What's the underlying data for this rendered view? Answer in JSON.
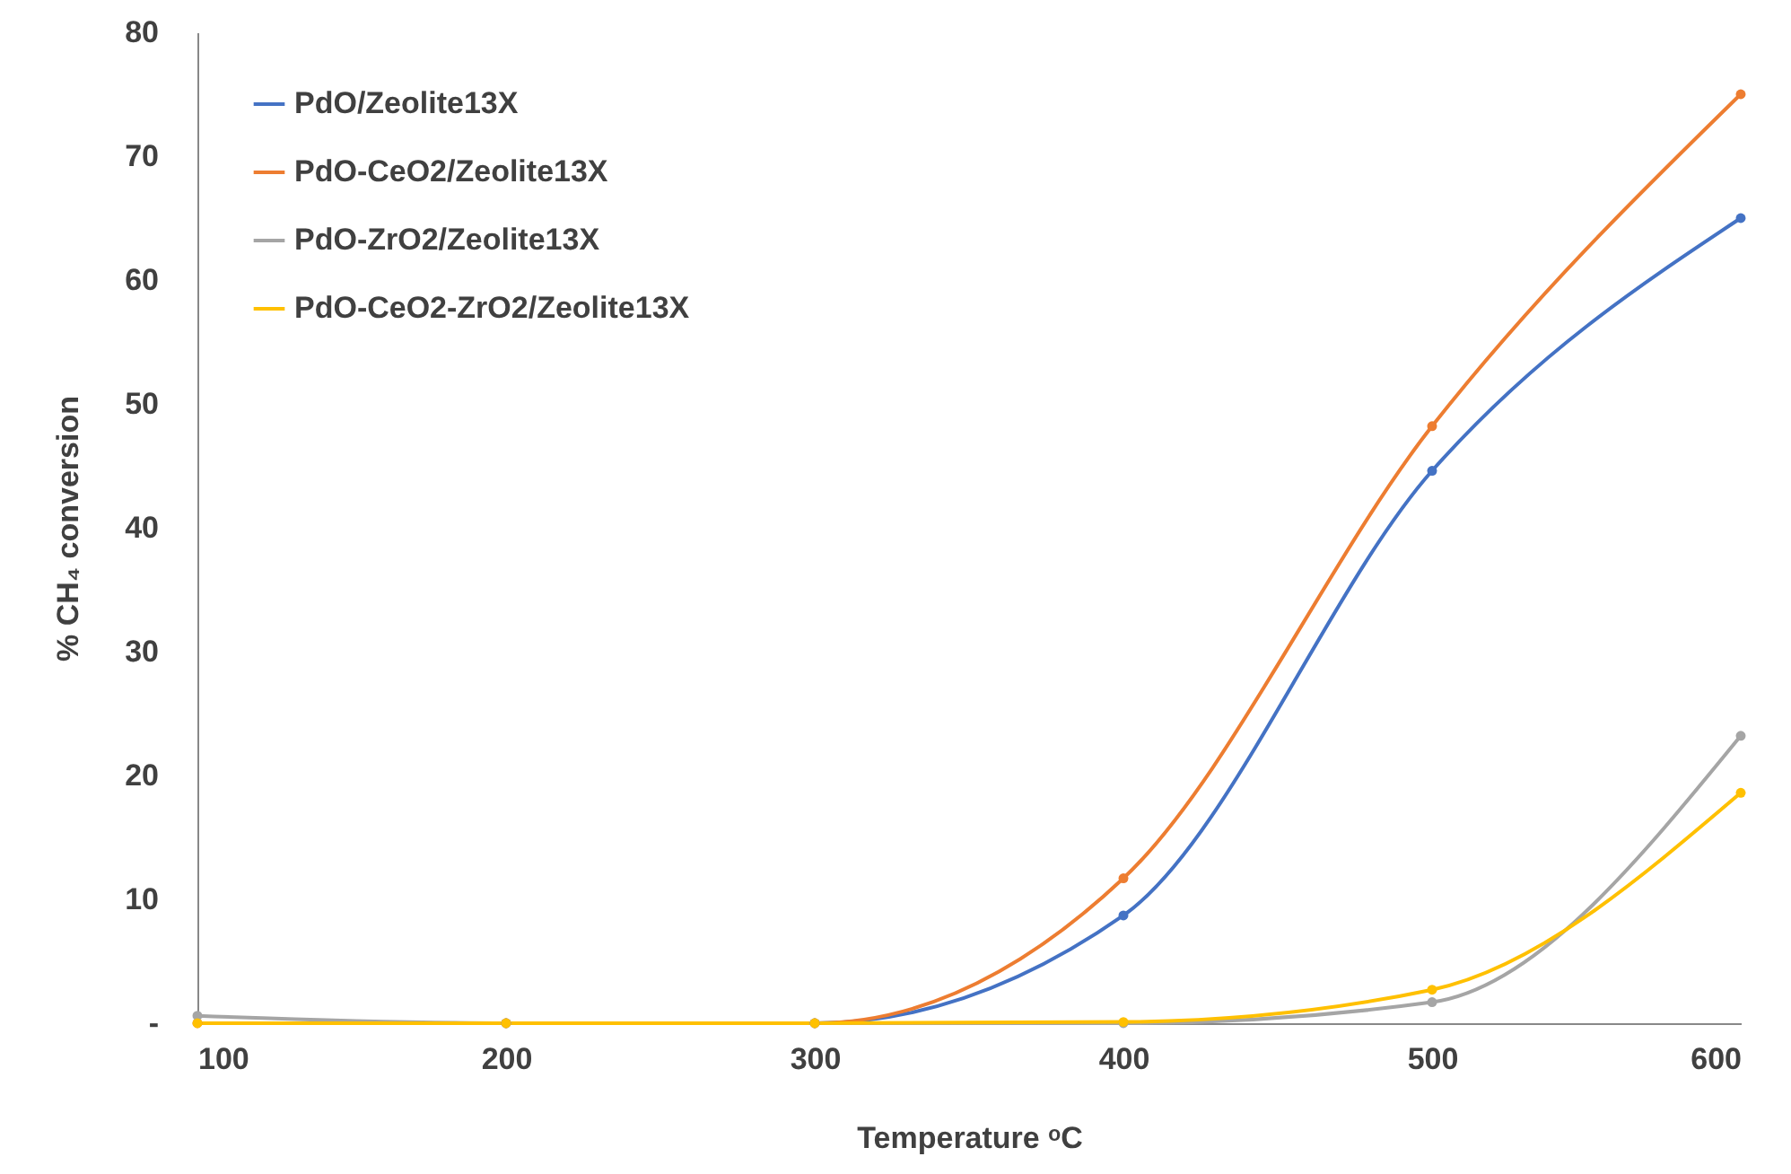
{
  "chart_data": {
    "type": "line",
    "xlabel": "Temperature ᵒC",
    "ylabel": "% CH₄ conversion",
    "x": [
      100,
      200,
      300,
      400,
      500,
      600
    ],
    "series": [
      {
        "name": "PdO/Zeolite13X",
        "color": "#4472c4",
        "values": [
          null,
          0,
          0,
          8.7,
          44.6,
          65
        ]
      },
      {
        "name": "PdO-CeO2/Zeolite13X",
        "color": "#ed7d31",
        "values": [
          0,
          0,
          0,
          11.7,
          48.2,
          75
        ]
      },
      {
        "name": "PdO-ZrO2/Zeolite13X",
        "color": "#a5a5a5",
        "values": [
          0.6,
          0,
          0,
          0,
          1.7,
          23.2
        ]
      },
      {
        "name": "PdO-CeO2-ZrO2/Zeolite13X",
        "color": "#ffc000",
        "values": [
          0,
          0,
          0,
          0.1,
          2.7,
          18.6
        ]
      }
    ],
    "xlim": [
      100,
      600
    ],
    "xticks": [
      100,
      200,
      300,
      400,
      500,
      600
    ],
    "ylim": [
      0,
      80
    ],
    "yticks": [
      {
        "value": 0,
        "label": "-"
      },
      10,
      20,
      30,
      40,
      50,
      60,
      70,
      80
    ],
    "grid": false,
    "legend": "top left",
    "marker": "circle",
    "line_style": "solid"
  }
}
